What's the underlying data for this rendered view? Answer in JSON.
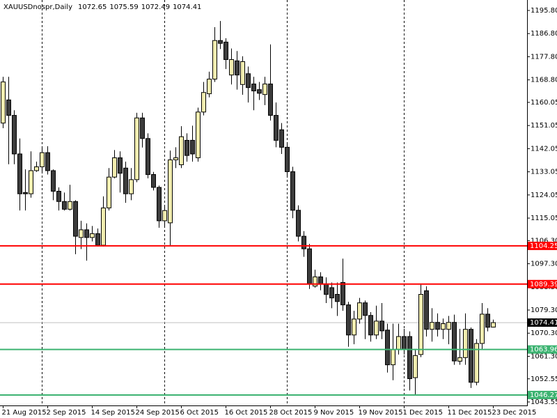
{
  "chart_data": {
    "type": "candlestick",
    "title": "XAUUSDnospr,Daily",
    "categories": [
      "21 Aug 2015",
      null,
      null,
      null,
      null,
      null,
      null,
      null,
      "2 Sep 2015",
      null,
      null,
      null,
      null,
      null,
      null,
      null,
      "14 Sep 2015",
      null,
      null,
      null,
      null,
      null,
      null,
      null,
      "24 Sep 2015",
      null,
      null,
      null,
      null,
      null,
      null,
      null,
      "6 Oct 2015",
      null,
      null,
      null,
      null,
      null,
      null,
      null,
      "16 Oct 2015",
      null,
      null,
      null,
      null,
      null,
      null,
      null,
      "28 Oct 2015",
      null,
      null,
      null,
      null,
      null,
      null,
      null,
      "9 Nov 2015",
      null,
      null,
      null,
      null,
      null,
      null,
      null,
      "19 Nov 2015",
      null,
      null,
      null,
      null,
      null,
      null,
      null,
      "1 Dec 2015",
      null,
      null,
      null,
      null,
      null,
      null,
      null,
      "11 Dec 2015",
      null,
      null,
      null,
      null,
      null,
      null,
      null,
      "23 Dec 2015"
    ],
    "open": [
      1152,
      1161,
      1155,
      1140,
      1125,
      1124.5,
      1133.5,
      1135,
      1140.5,
      1133.5,
      1125.5,
      1121.5,
      1118.5,
      1121.5,
      1107.5,
      1110.5,
      1107.5,
      1109,
      1104.5,
      1119,
      1131,
      1138.5,
      1134.5,
      1124.5,
      1130,
      1154,
      1146,
      1132,
      1127,
      1114,
      1113.2,
      1137.7,
      1135.8,
      1145.3,
      1145.3,
      1138.5,
      1156.3,
      1163.4,
      1169.1,
      1184.1,
      1183.5,
      1170.7,
      1176.2,
      1167,
      1171.2,
      1167.2,
      1165,
      1163.1,
      1167.2,
      1155,
      1149.4,
      1142.6,
      1133.1,
      1118.1,
      1108,
      1103.1,
      1088.6,
      1092.2,
      1089.5,
      1088,
      1085.4,
      1090,
      1081.3,
      1069.6,
      1075.8,
      1082.1,
      1077.2,
      1069.6,
      1075,
      1071.5,
      1058,
      1064,
      1069,
      1069,
      1053,
      1062,
      1086.8,
      1071.8,
      1074.5,
      1071.8,
      1071.8,
      1074.5,
      1059.4,
      1060.8,
      1071.8,
      1051.2,
      1066.3,
      1077.7,
      1072.65
    ],
    "high": [
      1170,
      1170,
      1157,
      1146,
      1134,
      1141,
      1137,
      1143,
      1143,
      1134,
      1127,
      1125,
      1128,
      1122,
      1114,
      1113,
      1112,
      1111,
      1123.5,
      1134.5,
      1141.5,
      1141,
      1137,
      1134.5,
      1156,
      1156,
      1148,
      1133,
      1127.7,
      1120,
      1141.3,
      1142.6,
      1150.8,
      1148,
      1151,
      1158,
      1168,
      1172,
      1189.3,
      1191.7,
      1185,
      1181,
      1180,
      1178,
      1174,
      1170,
      1168,
      1170,
      1182.6,
      1160,
      1152,
      1144,
      1135,
      1120,
      1110,
      1105,
      1095,
      1094,
      1092,
      1090,
      1090,
      1099.3,
      1082.5,
      1079,
      1084,
      1083,
      1078.5,
      1081,
      1082,
      1074,
      1074,
      1074,
      1072,
      1071,
      1064,
      1089.5,
      1088.5,
      1080,
      1078,
      1076,
      1077,
      1077.5,
      1072,
      1078,
      1072.5,
      1068,
      1082,
      1080,
      1075.59
    ],
    "low": [
      1150,
      1136,
      1136,
      1118,
      1118,
      1123,
      1133,
      1133,
      1132,
      1122,
      1118,
      1118,
      1118,
      1101,
      1103,
      1098.5,
      1106,
      1104,
      1104,
      1118,
      1130.5,
      1125,
      1121,
      1122,
      1129,
      1142.5,
      1130.5,
      1125.8,
      1111.3,
      1112,
      1104.5,
      1134.5,
      1134.5,
      1137,
      1137,
      1137,
      1155,
      1162,
      1168,
      1180.8,
      1173,
      1167,
      1165,
      1163,
      1160,
      1157,
      1161,
      1159,
      1153,
      1142.6,
      1140,
      1131,
      1115,
      1106,
      1100,
      1087.5,
      1088,
      1087,
      1082,
      1080,
      1077,
      1079,
      1065,
      1066,
      1074,
      1068,
      1067,
      1068,
      1068,
      1055,
      1052,
      1062,
      1062,
      1048,
      1046.3,
      1061,
      1069,
      1067,
      1069,
      1068,
      1066,
      1058,
      1058,
      1058,
      1049,
      1050,
      1064,
      1071,
      1072.49
    ],
    "close": [
      1168,
      1155,
      1140,
      1124.5,
      1124.5,
      1133.5,
      1135,
      1140.5,
      1133.5,
      1125.5,
      1121.5,
      1118.5,
      1121.5,
      1108,
      1110.5,
      1107.5,
      1109,
      1104.5,
      1119,
      1131,
      1138.5,
      1132.5,
      1124.5,
      1130,
      1154,
      1146,
      1132,
      1127,
      1114,
      1118,
      1137.7,
      1138.5,
      1146.7,
      1139.4,
      1140,
      1156.3,
      1163.9,
      1169.1,
      1184.1,
      1183,
      1176.7,
      1176.7,
      1170.7,
      1175.9,
      1165.8,
      1164.5,
      1163.6,
      1167.2,
      1155,
      1145.3,
      1142.6,
      1133.1,
      1118.1,
      1108,
      1103.1,
      1089.5,
      1092.2,
      1089.5,
      1085.4,
      1084,
      1082.6,
      1081.3,
      1069.6,
      1075.8,
      1082.1,
      1077.2,
      1069.6,
      1075,
      1071.2,
      1058,
      1064,
      1069,
      1064,
      1052.6,
      1061.6,
      1085.4,
      1071.8,
      1074.5,
      1071.8,
      1074,
      1074.5,
      1059.5,
      1060.8,
      1071.8,
      1051.2,
      1066.3,
      1077.7,
      1072.6,
      1074.41
    ],
    "up_color": "#f3eeb0",
    "down_color": "#3c3c3c",
    "ylim": [
      1042.19,
      1199.86
    ],
    "yticks": [
      {
        "value": 1195.8,
        "label": "1195.80"
      },
      {
        "value": 1186.8,
        "label": "1186.80"
      },
      {
        "value": 1177.8,
        "label": "1177.80"
      },
      {
        "value": 1168.8,
        "label": "1168.80"
      },
      {
        "value": 1160.05,
        "label": "1160.05"
      },
      {
        "value": 1151.05,
        "label": "1151.05"
      },
      {
        "value": 1142.05,
        "label": "1142.05"
      },
      {
        "value": 1133.05,
        "label": "1133.05"
      },
      {
        "value": 1124.05,
        "label": "1124.05"
      },
      {
        "value": 1115.05,
        "label": "1115.05"
      },
      {
        "value": 1106.3,
        "label": "1106.30"
      },
      {
        "value": 1097.3,
        "label": "1097.30"
      },
      {
        "value": 1088.3,
        "label": "1088.30"
      },
      {
        "value": 1079.3,
        "label": "1079.30"
      },
      {
        "value": 1070.3,
        "label": "1070.30"
      },
      {
        "value": 1061.3,
        "label": "1061.30"
      },
      {
        "value": 1052.55,
        "label": "1052.55"
      },
      {
        "value": 1043.55,
        "label": "1043.55"
      }
    ],
    "hlines": [
      {
        "value": 1104.25,
        "color": "#ff0000"
      },
      {
        "value": 1089.39,
        "color": "#ff0000"
      },
      {
        "value": 1063.96,
        "color": "#3cb371"
      },
      {
        "value": 1046.27,
        "color": "#3cb371"
      }
    ],
    "price_line_color": "#c0c0c0"
  }
}
